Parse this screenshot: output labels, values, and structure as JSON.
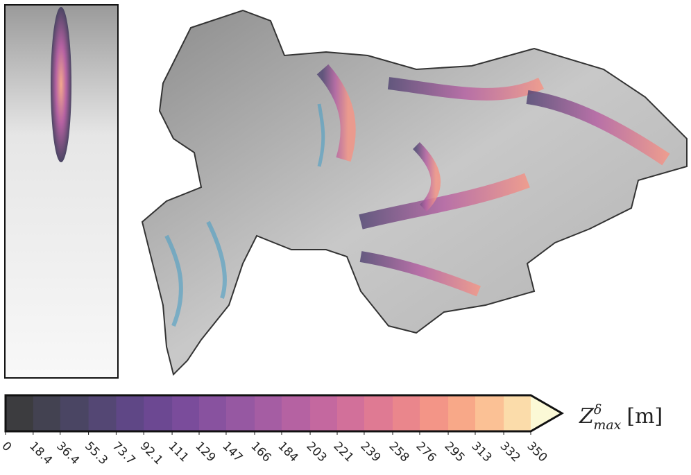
{
  "chart_data": {
    "type": "colorbar",
    "lim": [
      0,
      350
    ],
    "ticks": [
      0,
      18.4,
      36.4,
      55.3,
      73.7,
      92.1,
      111,
      129,
      147,
      166,
      184,
      203,
      221,
      239,
      258,
      276,
      295,
      313,
      332,
      350
    ],
    "colors": [
      "#3c3c3f",
      "#434251",
      "#4a4563",
      "#544774",
      "#5f4786",
      "#6c4892",
      "#7a4c9b",
      "#88529f",
      "#9658a2",
      "#a55da3",
      "#b562a2",
      "#c4689f",
      "#d2709a",
      "#df7a93",
      "#ea868c",
      "#f39587",
      "#f8a888",
      "#fbc195",
      "#fbdcaa"
    ],
    "extend_color": "#fbf9d6",
    "label": {
      "symbol": "Z",
      "superscript": "δ",
      "subscript": "max",
      "unit": "[m]"
    }
  }
}
